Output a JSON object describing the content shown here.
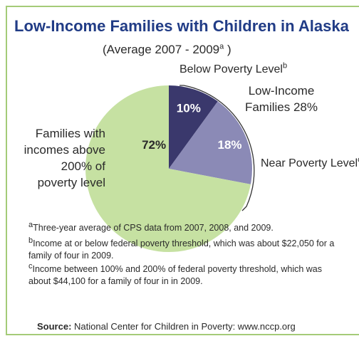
{
  "chart_data": {
    "type": "pie",
    "title": "Low-Income Families with Children in Alaska",
    "subtitle": {
      "text": "(Average 2007 - 2009",
      "mark": "a",
      "end": " )"
    },
    "categories": [
      "Below Poverty Level",
      "Near Poverty Level",
      "Families with incomes above 200% of poverty level"
    ],
    "category_marks": [
      "b",
      "c",
      null
    ],
    "values": [
      10,
      18,
      72
    ],
    "value_labels": [
      "10%",
      "18%",
      "72%"
    ],
    "colors": [
      "#3a386c",
      "#8b8ab6",
      "#c6e1a2"
    ],
    "group_label": "Low-Income Families 28%",
    "notes": [
      {
        "mark": "a",
        "text": "Three-year average of CPS data from 2007, 2008, and 2009."
      },
      {
        "mark": "b",
        "text": "Income at or below federal poverty threshold, which was about $22,050 for a family of four in 2009."
      },
      {
        "mark": "c",
        "text": "Income between 100% and 200% of federal poverty threshold, which was about $44,100 for a family of four in in 2009."
      }
    ],
    "source": {
      "label": "Source:",
      "text": "National Center for Children in Poverty: www.nccp.org"
    }
  }
}
